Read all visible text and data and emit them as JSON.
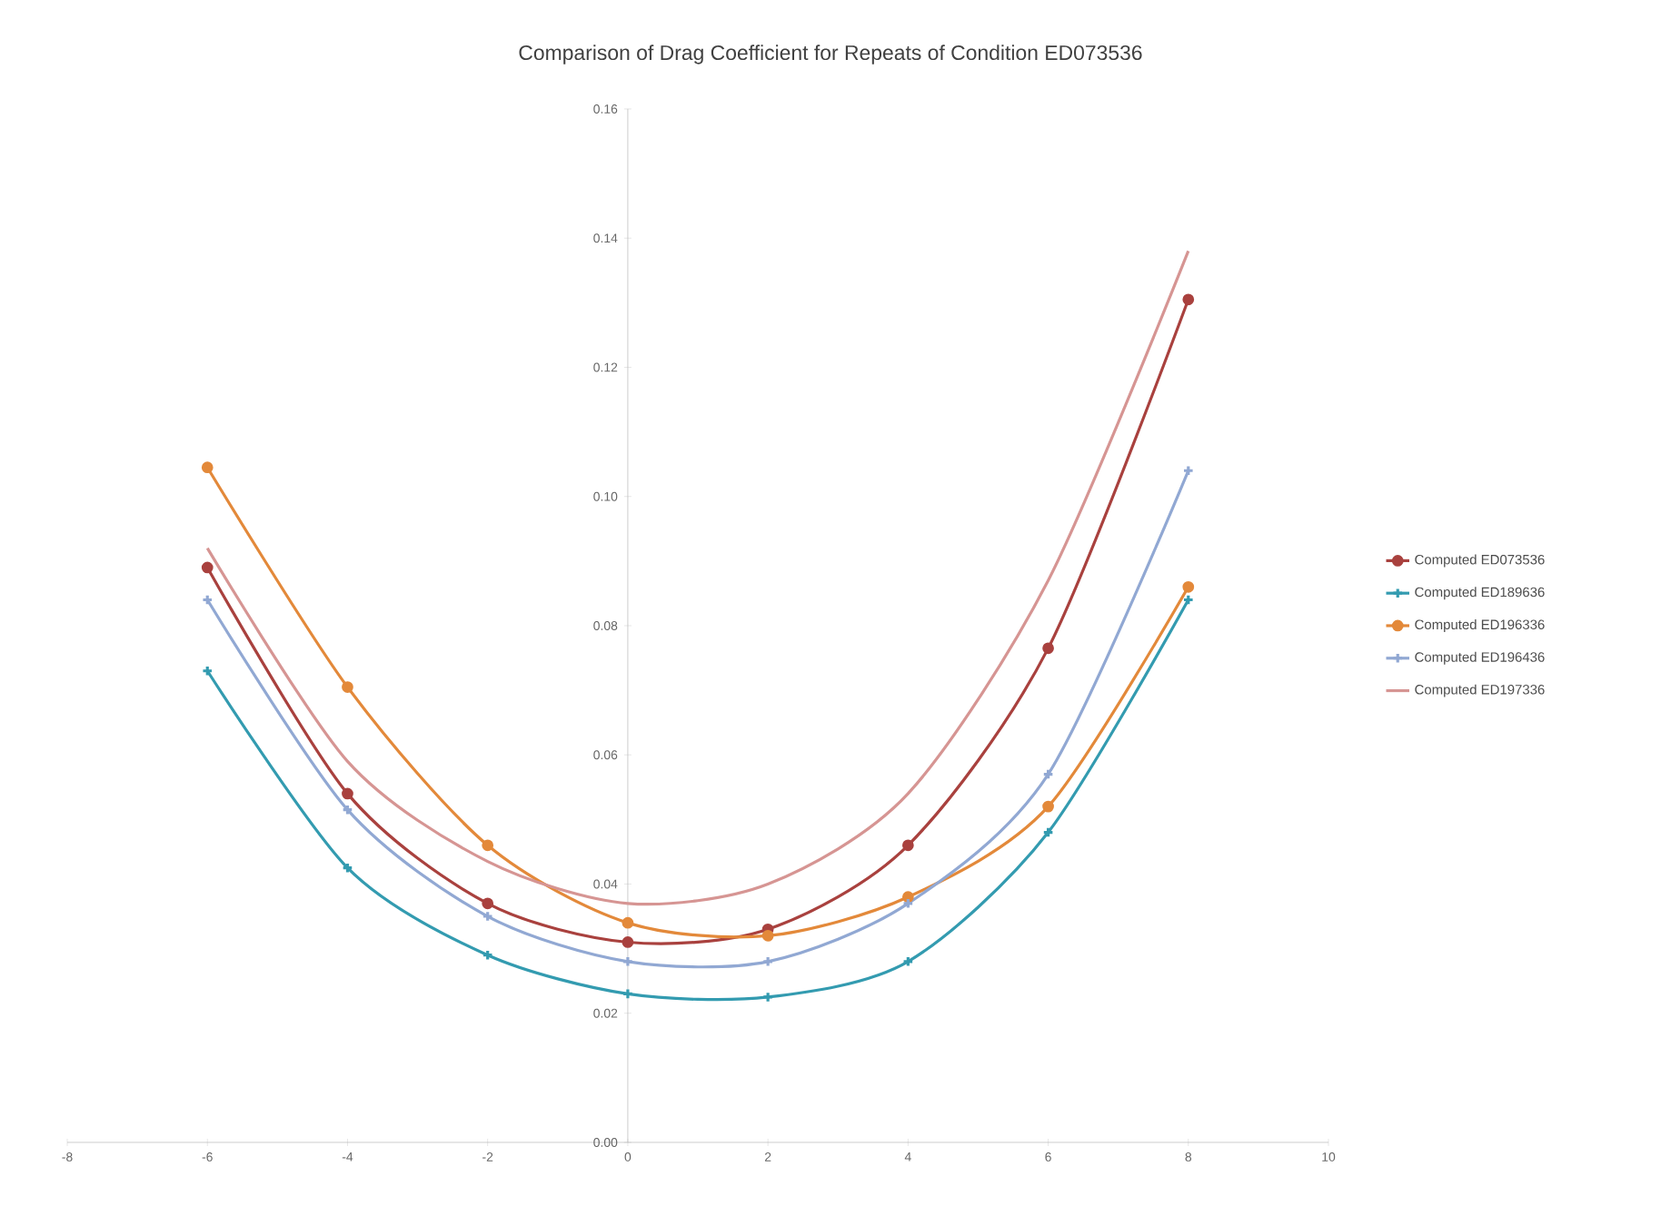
{
  "chart_data": {
    "type": "line",
    "title": "Comparison  of Drag Coefficient  for Repeats of Condition  ED073536",
    "x": [
      -6,
      -4,
      -2,
      0,
      2,
      4,
      6,
      8
    ],
    "series": [
      {
        "name": "Computed ED073536",
        "color": "#a9413e",
        "marker": "circle",
        "values": [
          0.089,
          0.054,
          0.037,
          0.031,
          0.033,
          0.046,
          0.0765,
          0.1305
        ]
      },
      {
        "name": "Computed ED189636",
        "color": "#339bb0",
        "marker": "cross",
        "values": [
          0.073,
          0.0425,
          0.029,
          0.023,
          0.0225,
          0.028,
          0.048,
          0.084
        ]
      },
      {
        "name": "Computed ED196336",
        "color": "#e3893a",
        "marker": "circle",
        "values": [
          0.1045,
          0.0705,
          0.046,
          0.034,
          0.032,
          0.038,
          0.052,
          0.086
        ]
      },
      {
        "name": "Computed ED196436",
        "color": "#91a8d3",
        "marker": "cross",
        "values": [
          0.084,
          0.0515,
          0.035,
          0.028,
          0.028,
          0.037,
          0.057,
          0.104
        ]
      },
      {
        "name": "Computed ED197336",
        "color": "#d69593",
        "marker": "none",
        "values": [
          0.092,
          0.059,
          0.0435,
          0.037,
          0.04,
          0.054,
          0.087,
          0.138
        ]
      }
    ],
    "xlim": [
      -8,
      10
    ],
    "xticks": [
      -8,
      -6,
      -4,
      -2,
      0,
      2,
      4,
      6,
      8,
      10
    ],
    "ylim": [
      0,
      0.16
    ],
    "yticks": [
      {
        "value": 0,
        "label": "0.00"
      },
      {
        "value": 0.02,
        "label": "0.02"
      },
      {
        "value": 0.04,
        "label": "0.04"
      },
      {
        "value": 0.06,
        "label": "0.06"
      },
      {
        "value": 0.08,
        "label": "0.08"
      },
      {
        "value": 0.1,
        "label": "0.10"
      },
      {
        "value": 0.12,
        "label": "0.12"
      },
      {
        "value": 0.14,
        "label": "0.14"
      },
      {
        "value": 0.16,
        "label": "0.16"
      }
    ],
    "grid": false,
    "legend": "right",
    "line_style": "solid"
  }
}
